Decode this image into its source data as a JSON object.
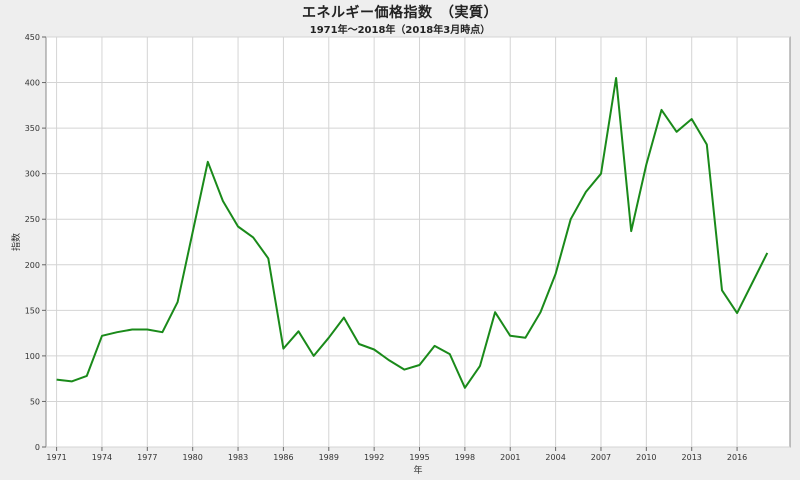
{
  "chart_data": {
    "type": "line",
    "title": "エネルギー価格指数　（実質）",
    "subtitle": "1971年～2018年（2018年3月時点）",
    "xlabel": "年",
    "ylabel": "指数",
    "xlim": [
      1970.3,
      2019.5
    ],
    "ylim": [
      0,
      450
    ],
    "yticks": [
      0,
      50,
      100,
      150,
      200,
      250,
      300,
      350,
      400,
      450
    ],
    "xticks": [
      1971,
      1974,
      1977,
      1980,
      1983,
      1986,
      1989,
      1992,
      1995,
      1998,
      2001,
      2004,
      2007,
      2010,
      2013,
      2016
    ],
    "grid": true,
    "line_color": "#1a8a1a",
    "series": [
      {
        "x": [
          1971,
          1972,
          1973,
          1974,
          1975,
          1976,
          1977,
          1978,
          1979,
          1980,
          1981,
          1982,
          1983,
          1984,
          1985,
          1986,
          1987,
          1988,
          1989,
          1990,
          1991,
          1992,
          1993,
          1994,
          1995,
          1996,
          1997,
          1998,
          1999,
          2000,
          2001,
          2002,
          2003,
          2004,
          2005,
          2006,
          2007,
          2008,
          2009,
          2010,
          2011,
          2012,
          2013,
          2014,
          2015,
          2016,
          2017,
          2018
        ],
        "values": [
          74,
          72,
          78,
          122,
          126,
          129,
          129,
          126,
          159,
          236,
          313,
          270,
          242,
          230,
          207,
          108,
          127,
          100,
          120,
          142,
          113,
          107,
          95,
          85,
          90,
          111,
          102,
          65,
          89,
          148,
          122,
          120,
          148,
          190,
          250,
          280,
          300,
          405,
          237,
          310,
          370,
          346,
          360,
          332,
          172,
          147,
          180,
          213
        ]
      }
    ]
  }
}
